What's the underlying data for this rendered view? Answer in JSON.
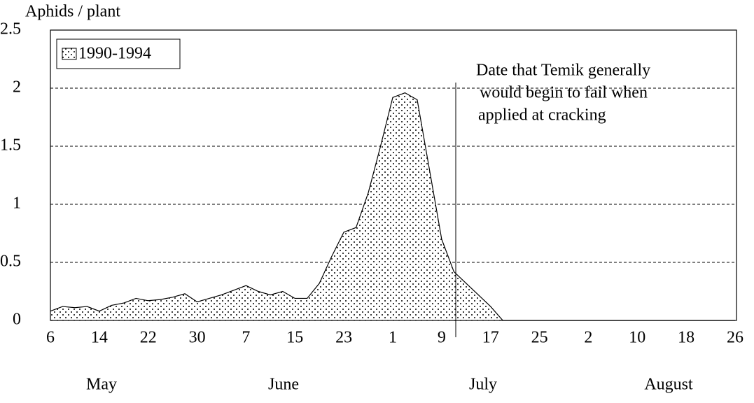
{
  "chart_data": {
    "type": "area",
    "ylabel": "Aphids / plant",
    "categories": [
      "6",
      null,
      null,
      null,
      "14",
      null,
      null,
      null,
      "22",
      null,
      null,
      null,
      "30",
      null,
      null,
      null,
      "7",
      null,
      null,
      null,
      "15",
      null,
      null,
      null,
      "23",
      null,
      null,
      null,
      "1",
      null,
      null,
      null,
      "9",
      null,
      null,
      null,
      "17",
      null,
      null,
      null,
      "25",
      null,
      null,
      null,
      "2",
      null,
      null,
      null,
      "10",
      null,
      null,
      null,
      "18",
      null,
      null,
      null,
      "26"
    ],
    "months": [
      "May",
      "June",
      "July",
      "August"
    ],
    "series": [
      {
        "name": "1990-1994",
        "color": "#000000",
        "values": [
          0.08,
          0.12,
          0.11,
          0.12,
          0.08,
          0.13,
          0.15,
          0.19,
          0.17,
          0.18,
          0.2,
          0.23,
          0.16,
          0.19,
          0.22,
          0.26,
          0.3,
          0.25,
          0.22,
          0.25,
          0.19,
          0.19,
          0.32,
          0.55,
          0.76,
          0.8,
          1.1,
          1.5,
          1.92,
          1.96,
          1.9,
          1.3,
          0.7,
          0.42,
          0.32,
          0.22,
          0.12,
          0,
          0,
          0,
          0,
          0,
          0,
          0,
          0,
          0,
          0,
          0,
          0,
          0,
          0,
          0,
          0,
          0,
          0,
          0,
          0
        ]
      }
    ],
    "ylim": [
      0,
      2.5
    ],
    "yticks": [
      0,
      0.5,
      1,
      1.5,
      2,
      2.5
    ],
    "grid": true,
    "legend": "upper left",
    "annotation": [
      "Date that Temik generally",
      "would begin to fail when",
      "applied at cracking"
    ]
  }
}
